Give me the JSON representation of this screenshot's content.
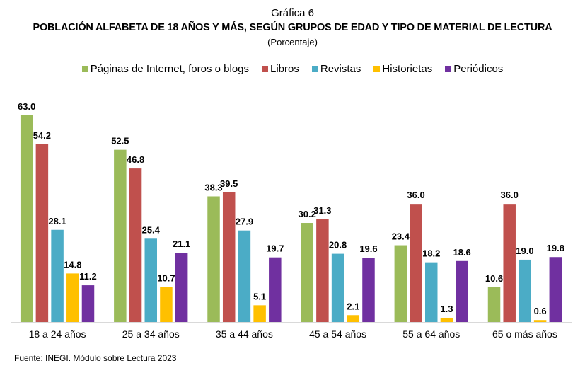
{
  "chart_data": {
    "type": "bar",
    "label": "Gráfica 6",
    "title": "POBLACIÓN ALFABETA DE 18 AÑOS Y MÁS, SEGÚN GRUPOS DE EDAD Y TIPO DE MATERIAL DE LECTURA",
    "subtitle": "(Porcentaje)",
    "xlabel": "",
    "ylabel": "",
    "ylim": [
      0,
      63
    ],
    "grid": false,
    "legend_position": "top",
    "categories": [
      "18 a 24 años",
      "25 a 34 años",
      "35 a 44 años",
      "45 a 54 años",
      "55 a 64 años",
      "65 o más años"
    ],
    "series": [
      {
        "name": "Páginas de Internet, foros o blogs",
        "color": "#9BBB59",
        "values": [
          63.0,
          52.5,
          38.3,
          30.2,
          23.4,
          10.6
        ]
      },
      {
        "name": "Libros",
        "color": "#C0504D",
        "values": [
          54.2,
          46.8,
          39.5,
          31.3,
          36.0,
          36.0
        ]
      },
      {
        "name": "Revistas",
        "color": "#4BACC6",
        "values": [
          28.1,
          25.4,
          27.9,
          20.8,
          18.2,
          19.0
        ]
      },
      {
        "name": "Historietas",
        "color": "#FFC000",
        "values": [
          14.8,
          10.7,
          5.1,
          2.1,
          1.3,
          0.6
        ]
      },
      {
        "name": "Periódicos",
        "color": "#7030A0",
        "values": [
          11.2,
          21.1,
          19.7,
          19.6,
          18.6,
          19.8
        ]
      }
    ],
    "source": "Fuente: INEGI. Módulo sobre Lectura 2023"
  }
}
